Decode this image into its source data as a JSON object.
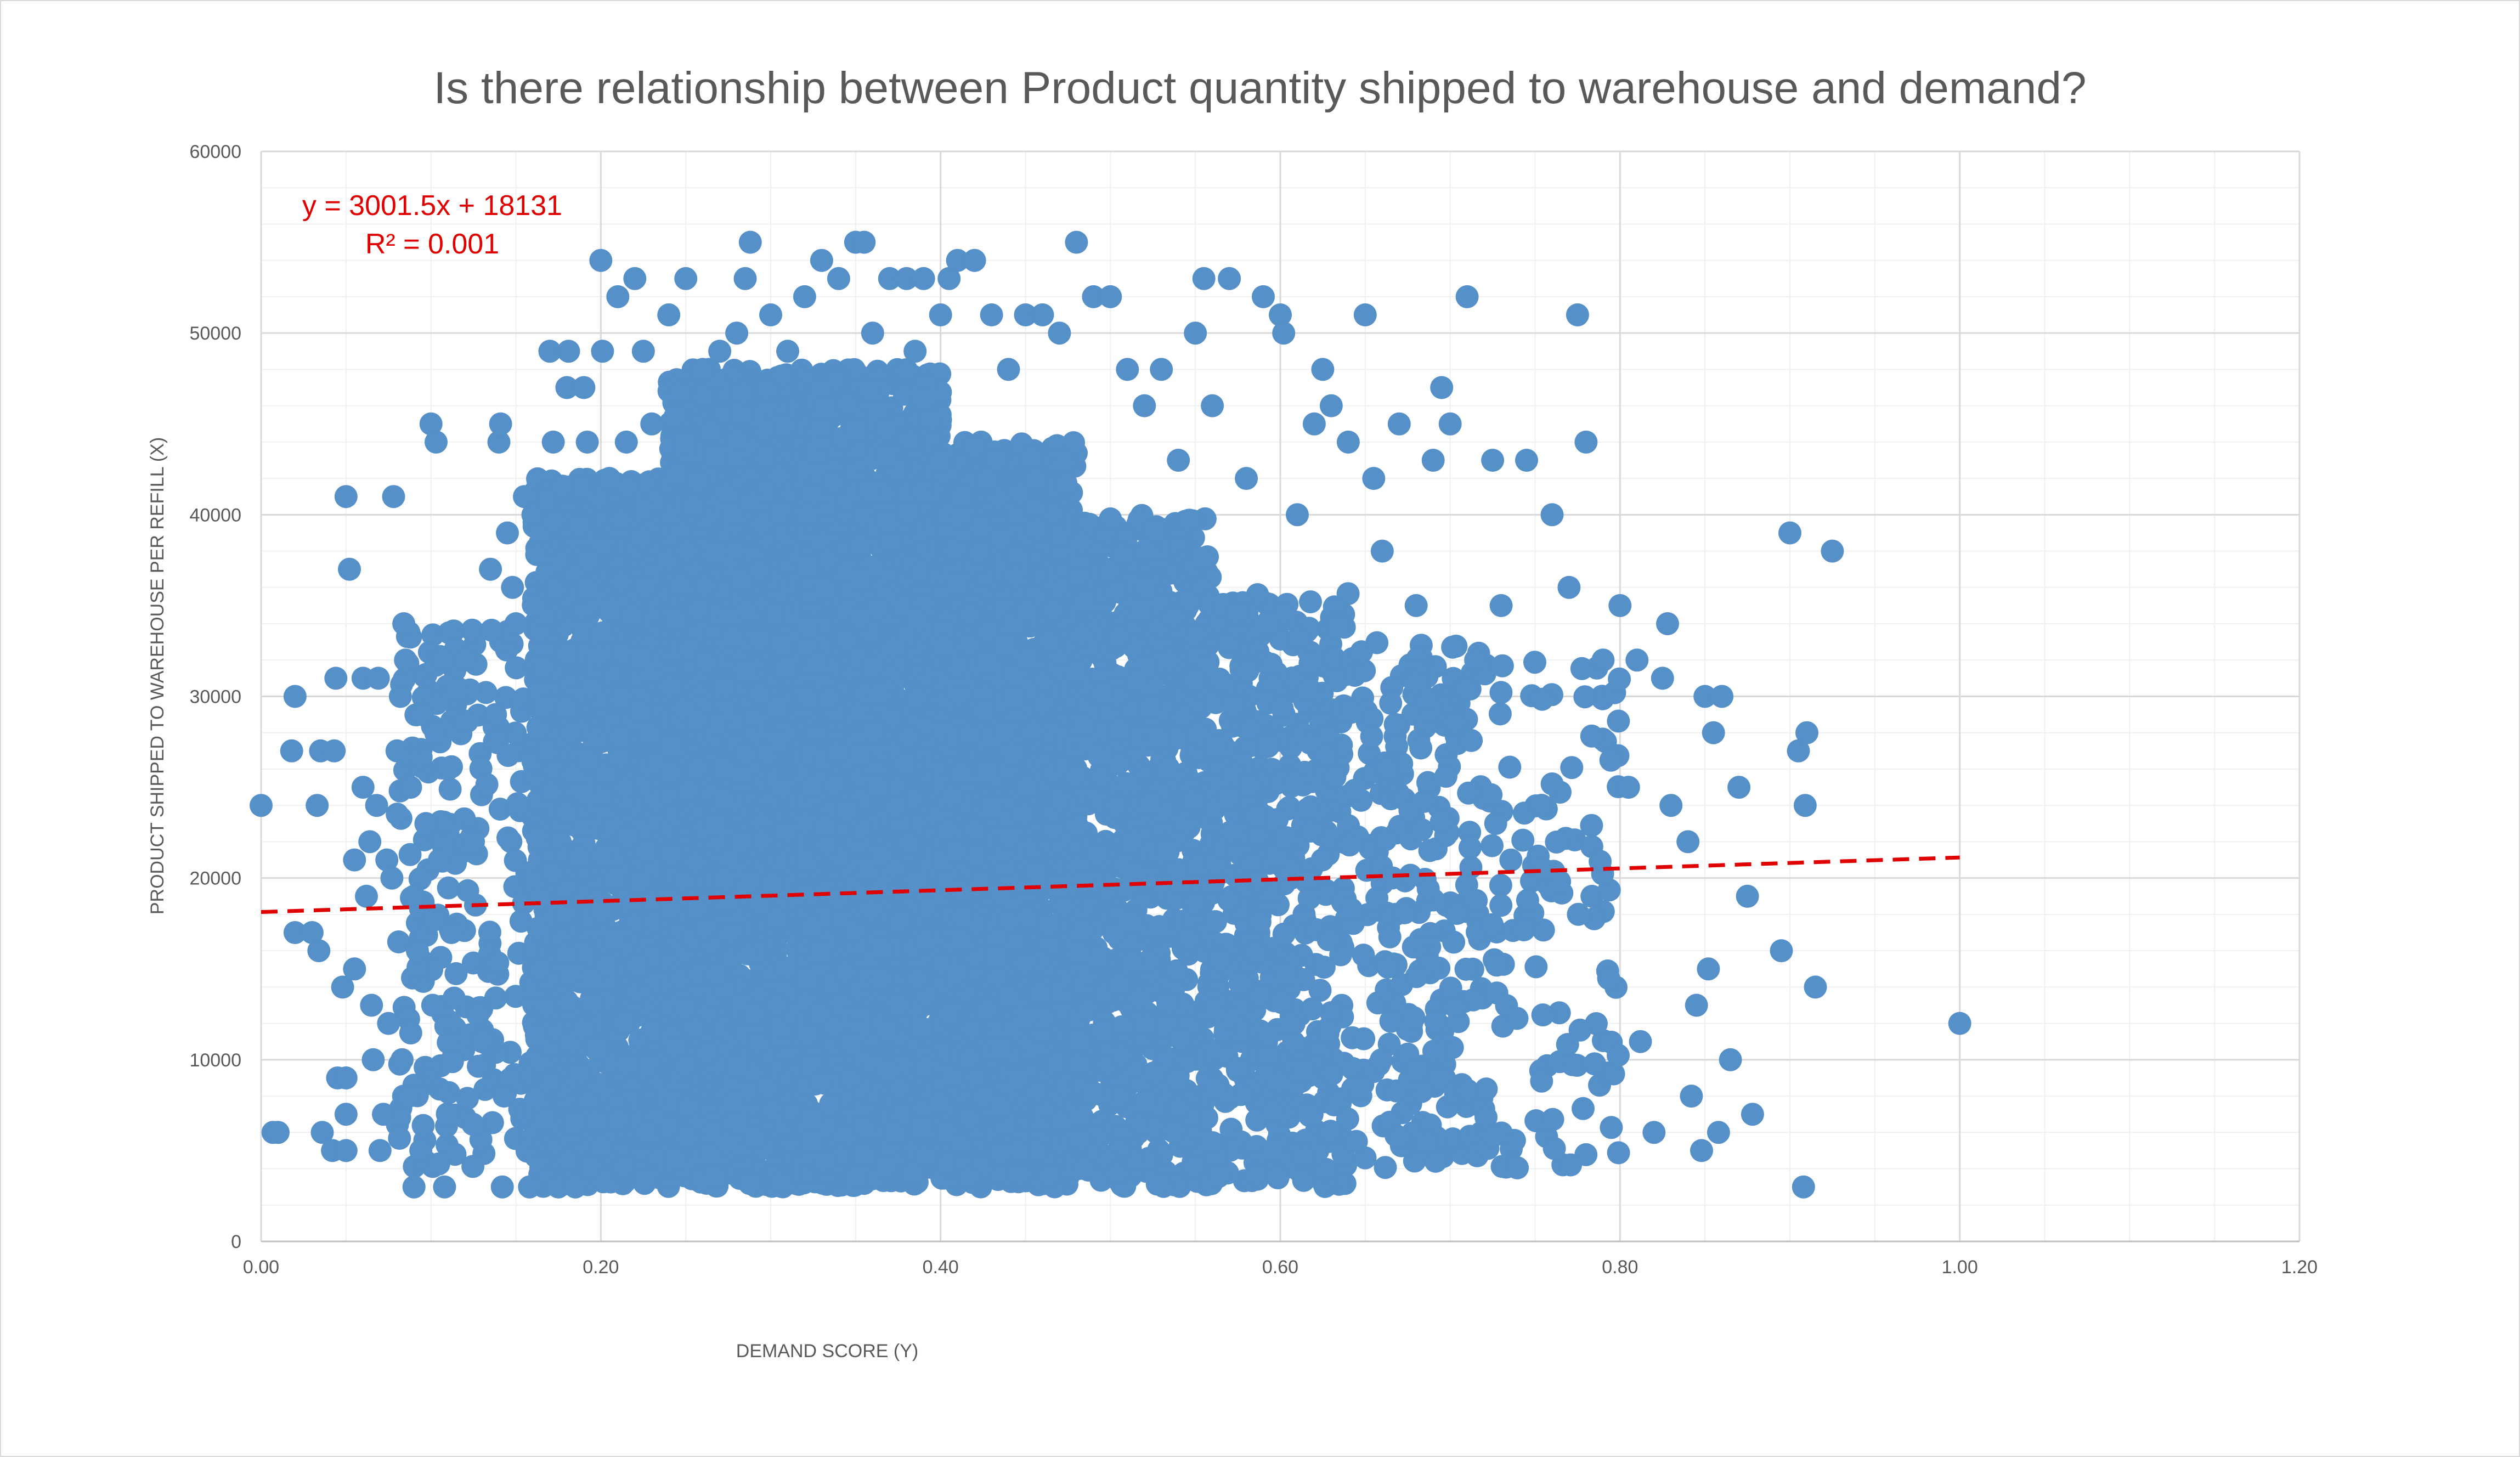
{
  "chart_data": {
    "type": "scatter",
    "title": "Is there relationship between Product quantity shipped to warehouse and demand?",
    "xlabel": "DEMAND SCORE (Y)",
    "ylabel": "PRODUCT SHIPPED TO WAREHOUSE PER REFILL (X)",
    "xlim": [
      0,
      1.2
    ],
    "ylim": [
      0,
      60000
    ],
    "x_ticks": [
      "0.00",
      "0.20",
      "0.40",
      "0.60",
      "0.80",
      "1.00",
      "1.20"
    ],
    "y_ticks": [
      "0",
      "10000",
      "20000",
      "30000",
      "40000",
      "50000",
      "60000"
    ],
    "grid": true,
    "series": [
      {
        "color": "#5590c8",
        "points": [
          [
            0.0,
            24000
          ],
          [
            0.007,
            6000
          ],
          [
            0.01,
            6000
          ],
          [
            0.018,
            27000
          ],
          [
            0.02,
            30000
          ],
          [
            0.02,
            17000
          ],
          [
            0.03,
            17000
          ],
          [
            0.033,
            24000
          ],
          [
            0.034,
            16000
          ],
          [
            0.035,
            27000
          ],
          [
            0.036,
            6000
          ],
          [
            0.042,
            5000
          ],
          [
            0.043,
            27000
          ],
          [
            0.044,
            31000
          ],
          [
            0.045,
            9000
          ],
          [
            0.048,
            14000
          ],
          [
            0.05,
            9000
          ],
          [
            0.05,
            5000
          ],
          [
            0.05,
            7000
          ],
          [
            0.05,
            41000
          ],
          [
            0.052,
            37000
          ],
          [
            0.055,
            21000
          ],
          [
            0.055,
            15000
          ],
          [
            0.06,
            25000
          ],
          [
            0.06,
            31000
          ],
          [
            0.062,
            19000
          ],
          [
            0.064,
            22000
          ],
          [
            0.065,
            13000
          ],
          [
            0.066,
            10000
          ],
          [
            0.068,
            24000
          ],
          [
            0.069,
            31000
          ],
          [
            0.07,
            5000
          ],
          [
            0.072,
            7000
          ],
          [
            0.074,
            21000
          ],
          [
            0.075,
            12000
          ],
          [
            0.077,
            20000
          ],
          [
            0.078,
            41000
          ],
          [
            0.08,
            27000
          ],
          [
            0.082,
            30000
          ],
          [
            0.083,
            10000
          ],
          [
            0.084,
            34000
          ],
          [
            0.085,
            32000
          ],
          [
            0.087,
            8000
          ],
          [
            0.088,
            25000
          ],
          [
            0.09,
            3000
          ],
          [
            0.09,
            19000
          ],
          [
            0.092,
            16000
          ],
          [
            0.094,
            5000
          ],
          [
            0.095,
            29000
          ],
          [
            0.097,
            23000
          ],
          [
            0.1,
            45000
          ],
          [
            0.101,
            13000
          ],
          [
            0.103,
            44000
          ],
          [
            0.105,
            21000
          ],
          [
            0.107,
            32000
          ],
          [
            0.108,
            3000
          ],
          [
            0.11,
            26000
          ],
          [
            0.112,
            17000
          ],
          [
            0.12,
            32000
          ],
          [
            0.125,
            22000
          ],
          [
            0.13,
            11000
          ],
          [
            0.135,
            37000
          ],
          [
            0.138,
            29000
          ],
          [
            0.14,
            44000
          ],
          [
            0.141,
            45000
          ],
          [
            0.142,
            3000
          ],
          [
            0.143,
            8000
          ],
          [
            0.145,
            39000
          ],
          [
            0.148,
            36000
          ],
          [
            0.15,
            34000
          ],
          [
            0.152,
            24000
          ],
          [
            0.155,
            41000
          ],
          [
            0.158,
            3000
          ],
          [
            0.16,
            40000
          ],
          [
            0.165,
            15000
          ],
          [
            0.168,
            27000
          ],
          [
            0.17,
            49000
          ],
          [
            0.172,
            44000
          ],
          [
            0.175,
            3000
          ],
          [
            0.18,
            47000
          ],
          [
            0.181,
            49000
          ],
          [
            0.185,
            3000
          ],
          [
            0.19,
            47000
          ],
          [
            0.192,
            44000
          ],
          [
            0.2,
            54000
          ],
          [
            0.201,
            49000
          ],
          [
            0.205,
            42000
          ],
          [
            0.21,
            52000
          ],
          [
            0.215,
            44000
          ],
          [
            0.22,
            53000
          ],
          [
            0.225,
            49000
          ],
          [
            0.23,
            45000
          ],
          [
            0.24,
            51000
          ],
          [
            0.25,
            53000
          ],
          [
            0.26,
            48000
          ],
          [
            0.27,
            49000
          ],
          [
            0.28,
            50000
          ],
          [
            0.285,
            53000
          ],
          [
            0.288,
            55000
          ],
          [
            0.3,
            51000
          ],
          [
            0.31,
            49000
          ],
          [
            0.32,
            52000
          ],
          [
            0.33,
            54000
          ],
          [
            0.34,
            53000
          ],
          [
            0.35,
            55000
          ],
          [
            0.355,
            55000
          ],
          [
            0.36,
            50000
          ],
          [
            0.37,
            53000
          ],
          [
            0.38,
            53000
          ],
          [
            0.385,
            49000
          ],
          [
            0.39,
            53000
          ],
          [
            0.4,
            51000
          ],
          [
            0.405,
            53000
          ],
          [
            0.41,
            54000
          ],
          [
            0.42,
            54000
          ],
          [
            0.43,
            51000
          ],
          [
            0.44,
            48000
          ],
          [
            0.45,
            51000
          ],
          [
            0.46,
            51000
          ],
          [
            0.47,
            50000
          ],
          [
            0.48,
            55000
          ],
          [
            0.49,
            52000
          ],
          [
            0.5,
            52000
          ],
          [
            0.51,
            48000
          ],
          [
            0.52,
            46000
          ],
          [
            0.53,
            48000
          ],
          [
            0.54,
            43000
          ],
          [
            0.55,
            50000
          ],
          [
            0.555,
            53000
          ],
          [
            0.56,
            46000
          ],
          [
            0.57,
            53000
          ],
          [
            0.58,
            42000
          ],
          [
            0.59,
            52000
          ],
          [
            0.6,
            51000
          ],
          [
            0.602,
            50000
          ],
          [
            0.61,
            40000
          ],
          [
            0.62,
            45000
          ],
          [
            0.625,
            48000
          ],
          [
            0.63,
            46000
          ],
          [
            0.64,
            44000
          ],
          [
            0.65,
            51000
          ],
          [
            0.655,
            42000
          ],
          [
            0.66,
            38000
          ],
          [
            0.67,
            45000
          ],
          [
            0.68,
            35000
          ],
          [
            0.69,
            43000
          ],
          [
            0.695,
            47000
          ],
          [
            0.7,
            45000
          ],
          [
            0.71,
            52000
          ],
          [
            0.715,
            32000
          ],
          [
            0.725,
            43000
          ],
          [
            0.73,
            35000
          ],
          [
            0.745,
            43000
          ],
          [
            0.76,
            40000
          ],
          [
            0.77,
            36000
          ],
          [
            0.775,
            51000
          ],
          [
            0.78,
            44000
          ],
          [
            0.79,
            32000
          ],
          [
            0.8,
            35000
          ],
          [
            0.805,
            25000
          ],
          [
            0.81,
            32000
          ],
          [
            0.812,
            11000
          ],
          [
            0.82,
            6000
          ],
          [
            0.825,
            31000
          ],
          [
            0.828,
            34000
          ],
          [
            0.83,
            24000
          ],
          [
            0.84,
            22000
          ],
          [
            0.842,
            8000
          ],
          [
            0.845,
            13000
          ],
          [
            0.848,
            5000
          ],
          [
            0.85,
            30000
          ],
          [
            0.852,
            15000
          ],
          [
            0.855,
            28000
          ],
          [
            0.858,
            6000
          ],
          [
            0.86,
            30000
          ],
          [
            0.865,
            10000
          ],
          [
            0.87,
            25000
          ],
          [
            0.875,
            19000
          ],
          [
            0.878,
            7000
          ],
          [
            0.895,
            16000
          ],
          [
            0.9,
            39000
          ],
          [
            0.905,
            27000
          ],
          [
            0.908,
            3000
          ],
          [
            0.909,
            24000
          ],
          [
            0.91,
            28000
          ],
          [
            0.915,
            14000
          ],
          [
            0.925,
            38000
          ],
          [
            1.0,
            12000
          ]
        ]
      }
    ],
    "trendline": {
      "label": "y = 3001.5x + 18131",
      "r2_label": "R² = 0.001",
      "slope": 3001.5,
      "intercept": 18131,
      "x_range": [
        0,
        1.0
      ],
      "color": "#e00000"
    },
    "dense_cloud": [
      {
        "x_range": [
          0.08,
          0.16
        ],
        "y_range": [
          4000,
          34000
        ],
        "count": 220
      },
      {
        "x_range": [
          0.16,
          0.24
        ],
        "y_range": [
          3000,
          42000
        ],
        "count": 1400
      },
      {
        "x_range": [
          0.24,
          0.32
        ],
        "y_range": [
          3000,
          48000
        ],
        "count": 2200
      },
      {
        "x_range": [
          0.32,
          0.4
        ],
        "y_range": [
          3000,
          48000
        ],
        "count": 2200
      },
      {
        "x_range": [
          0.4,
          0.48
        ],
        "y_range": [
          3000,
          44000
        ],
        "count": 1800
      },
      {
        "x_range": [
          0.48,
          0.56
        ],
        "y_range": [
          3000,
          40000
        ],
        "count": 900
      },
      {
        "x_range": [
          0.56,
          0.64
        ],
        "y_range": [
          3000,
          36000
        ],
        "count": 520
      },
      {
        "x_range": [
          0.64,
          0.72
        ],
        "y_range": [
          4000,
          33000
        ],
        "count": 260
      },
      {
        "x_range": [
          0.72,
          0.8
        ],
        "y_range": [
          4000,
          32000
        ],
        "count": 120
      }
    ]
  }
}
